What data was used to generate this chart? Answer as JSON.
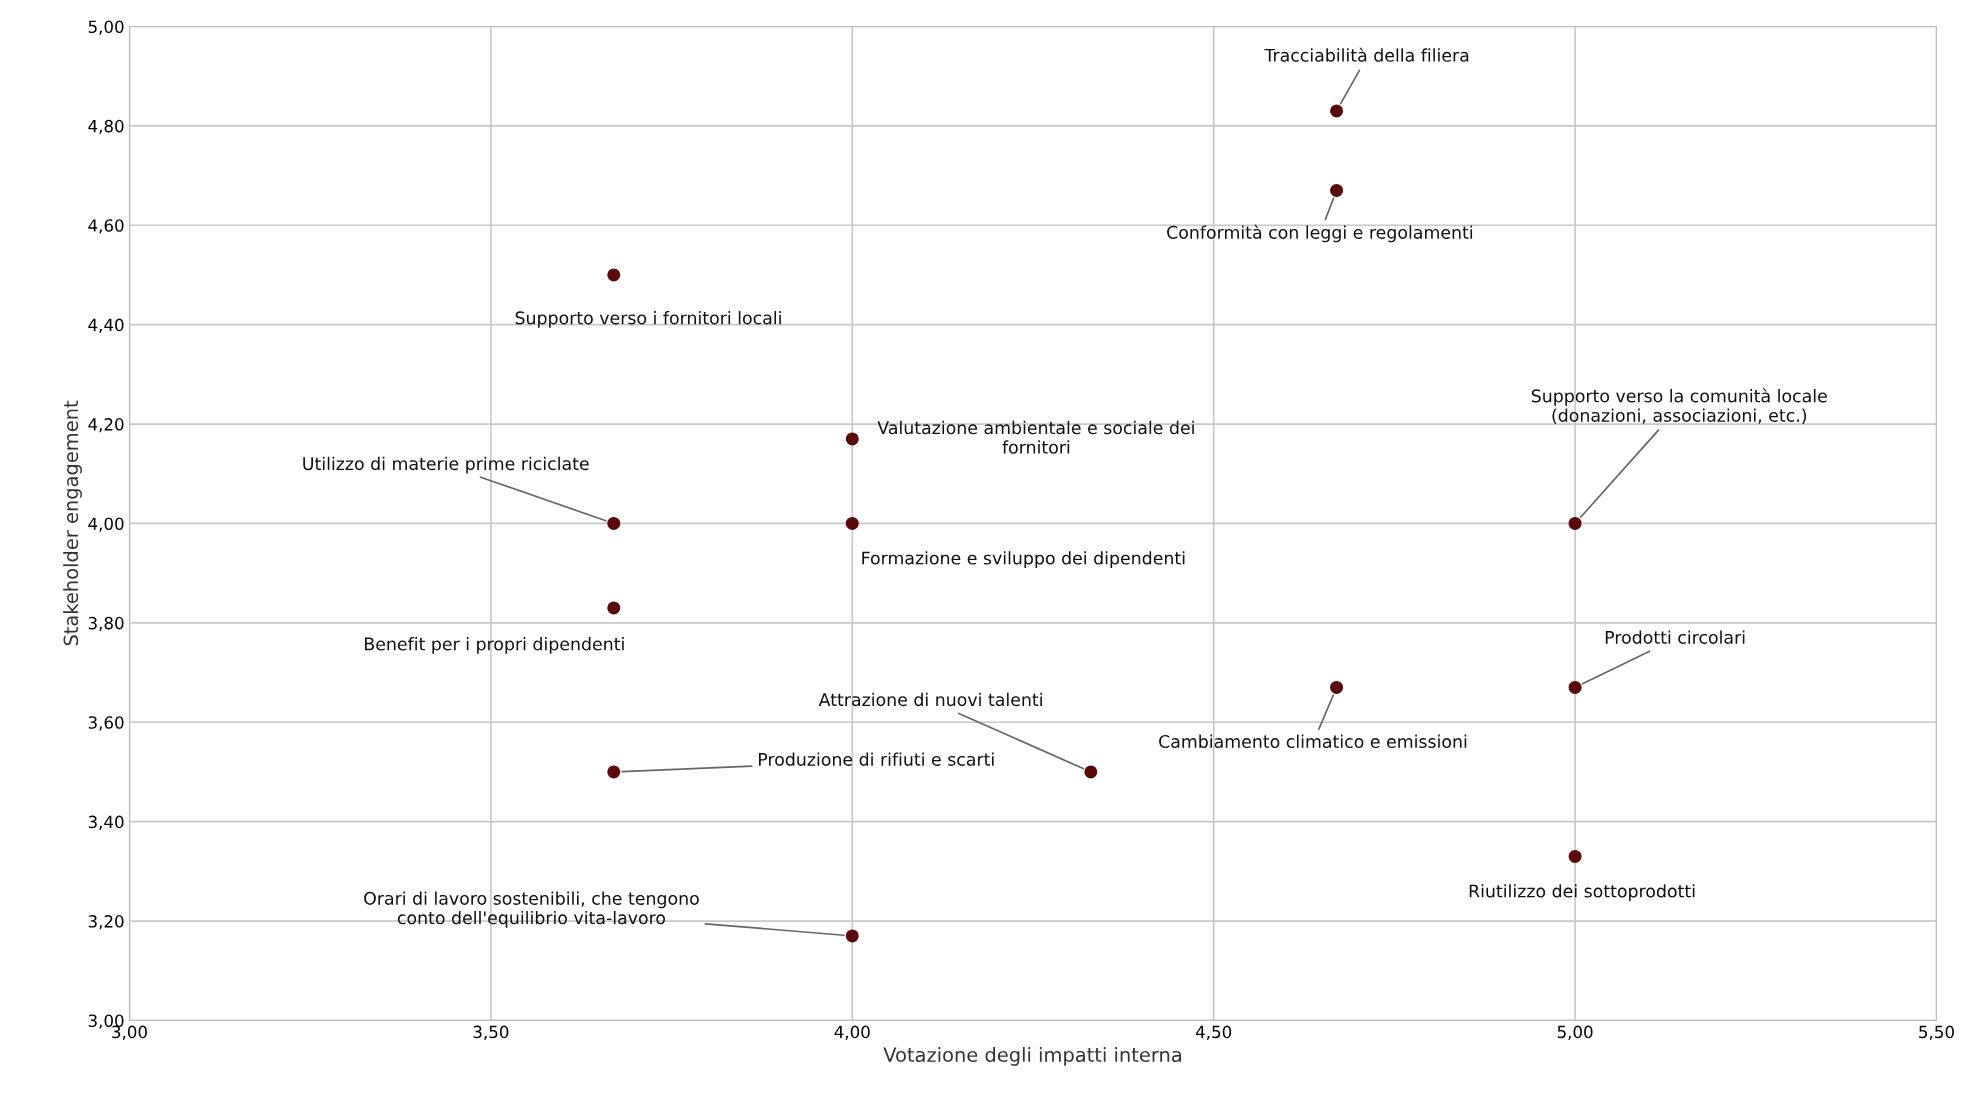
{
  "chart_data": {
    "type": "scatter",
    "xlabel": "Votazione degli impatti interna",
    "ylabel": "Stakeholder engagement",
    "x": [
      4.67,
      4.67,
      3.67,
      4.0,
      3.67,
      4.0,
      5.0,
      3.67,
      5.0,
      4.67,
      4.33,
      3.67,
      5.0,
      4.0
    ],
    "series": [
      {
        "color": "#5a0a0a",
        "values": [
          4.83,
          4.67,
          4.5,
          4.17,
          4.0,
          4.0,
          4.0,
          3.83,
          3.67,
          3.67,
          3.5,
          3.5,
          3.33,
          3.17
        ]
      }
    ],
    "marker": "circle",
    "grid": true,
    "xlim": [
      3.0,
      5.5
    ],
    "ylim": [
      3.0,
      5.0
    ],
    "xticks": [
      {
        "value": 3.0,
        "label": "3,00"
      },
      {
        "value": 3.5,
        "label": "3,50"
      },
      {
        "value": 4.0,
        "label": "4,00"
      },
      {
        "value": 4.5,
        "label": "4,50"
      },
      {
        "value": 5.0,
        "label": "5,00"
      },
      {
        "value": 5.5,
        "label": "5,50"
      }
    ],
    "yticks": [
      {
        "value": 3.0,
        "label": "3,00"
      },
      {
        "value": 3.2,
        "label": "3,20"
      },
      {
        "value": 3.4,
        "label": "3,40"
      },
      {
        "value": 3.6,
        "label": "3,60"
      },
      {
        "value": 3.8,
        "label": "3,80"
      },
      {
        "value": 4.0,
        "label": "4,00"
      },
      {
        "value": 4.2,
        "label": "4,20"
      },
      {
        "value": 4.4,
        "label": "4,40"
      },
      {
        "value": 4.6,
        "label": "4,60"
      },
      {
        "value": 4.8,
        "label": "4,80"
      },
      {
        "value": 5.0,
        "label": "5,00"
      }
    ],
    "annotations": [
      {
        "text": "Tracciabilità della filiera",
        "x": 4.67,
        "y": 4.83
      },
      {
        "text": "Conformità con leggi e regolamenti",
        "x": 4.67,
        "y": 4.67
      },
      {
        "text": "Supporto verso i fornitori locali",
        "x": 3.67,
        "y": 4.5
      },
      {
        "text": "Valutazione ambientale e sociale dei\nfornitori",
        "x": 4.0,
        "y": 4.17
      },
      {
        "text": "Utilizzo di materie prime riciclate",
        "x": 3.67,
        "y": 4.0
      },
      {
        "text": "Formazione e sviluppo dei dipendenti",
        "x": 4.0,
        "y": 4.0
      },
      {
        "text": "Supporto verso la comunità locale\n(donazioni, associazioni, etc.)",
        "x": 5.0,
        "y": 4.0
      },
      {
        "text": "Benefit per i propri dipendenti",
        "x": 3.67,
        "y": 3.83
      },
      {
        "text": "Prodotti circolari",
        "x": 5.0,
        "y": 3.67
      },
      {
        "text": "Cambiamento climatico e emissioni",
        "x": 4.67,
        "y": 3.67
      },
      {
        "text": "Attrazione di nuovi talenti",
        "x": 4.33,
        "y": 3.5
      },
      {
        "text": "Produzione di rifiuti e scarti",
        "x": 3.67,
        "y": 3.5
      },
      {
        "text": "Riutilizzo dei sottoprodotti",
        "x": 5.0,
        "y": 3.33
      },
      {
        "text": "Orari di lavoro sostenibili, che tengono\nconto dell'equilibrio vita-lavoro",
        "x": 4.0,
        "y": 3.17
      }
    ]
  }
}
